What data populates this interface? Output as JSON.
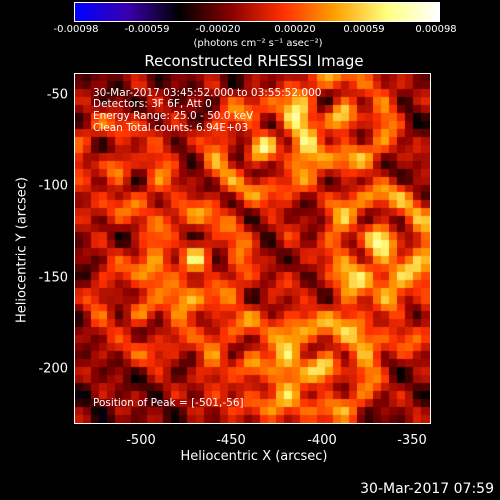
{
  "colorbar": {
    "ticks": [
      "-0.00098",
      "-0.00059",
      "-0.00020",
      "0.00020",
      "0.00059",
      "0.00098"
    ],
    "unit_label": "(photons cm⁻² s⁻¹ asec⁻²)",
    "colors": [
      "#0000ff",
      "#3a00b0",
      "#000000",
      "#8a0000",
      "#ff3000",
      "#ffa000",
      "#ffff80",
      "#ffffff"
    ]
  },
  "chart_data": {
    "type": "heatmap",
    "title": "Reconstructed RHESSI Image",
    "xlabel": "Heliocentric X (arcsec)",
    "ylabel": "Heliocentric Y (arcsec)",
    "xlim": [
      -536,
      -345
    ],
    "ylim": [
      -232,
      -38
    ],
    "x_ticks": [
      "-500",
      "-450",
      "-400",
      "-350"
    ],
    "y_ticks": [
      "-50",
      "-100",
      "-150",
      "-200"
    ],
    "x_tick_values": [
      -500,
      -450,
      -400,
      -350
    ],
    "y_tick_values": [
      -50,
      -100,
      -150,
      -200
    ],
    "value_range": [
      -0.00098,
      0.00098
    ],
    "annotations": [
      "30-Mar-2017 03:45:52.000 to 03:55:52.000",
      "Detectors: 3F 6F, Att 0",
      "Energy Range: 25.0 - 50.0 keV",
      "Clean    Total counts: 6.94E+03"
    ],
    "peak_label": "Position of Peak = [-501,-56]",
    "peak_position": [
      -501,
      -56
    ],
    "hotspots": [
      {
        "x": -392,
        "y": -62,
        "intensity": 0.95
      },
      {
        "x": -371,
        "y": -130,
        "intensity": 1.0
      },
      {
        "x": -435,
        "y": -80,
        "intensity": 0.85
      },
      {
        "x": -470,
        "y": -140,
        "intensity": 0.8
      },
      {
        "x": -402,
        "y": -202,
        "intensity": 0.95
      },
      {
        "x": -513,
        "y": -90,
        "intensity": 0.7
      },
      {
        "x": -500,
        "y": -170,
        "intensity": 0.6
      },
      {
        "x": -440,
        "y": -200,
        "intensity": 0.7
      },
      {
        "x": -365,
        "y": -165,
        "intensity": 0.6
      }
    ]
  },
  "footer": {
    "timestamp": "30-Mar-2017 07:59"
  }
}
